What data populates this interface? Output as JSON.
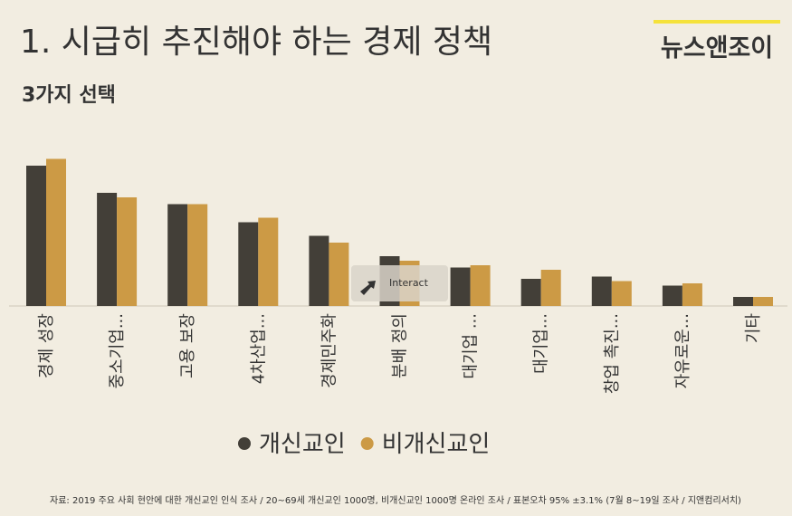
{
  "chart_data": {
    "type": "bar",
    "title": "1. 시급히 추진해야 하는 경제 정책",
    "subtitle": "3가지 선택",
    "logo": "뉴스앤조이",
    "categories": [
      "경제 성장",
      "중소기업...",
      "고용 보장",
      "4차산업...",
      "경제민주화",
      "분배 정의",
      "대기업 ...",
      "대기업...",
      "창업 촉진...",
      "자유로운...",
      "기타"
    ],
    "series": [
      {
        "name": "개신교인",
        "color": "#433f38",
        "values": [
          62,
          50,
          45,
          37,
          31,
          22,
          17,
          12,
          13,
          9,
          4
        ]
      },
      {
        "name": "비개신교인",
        "color": "#cc9a45",
        "values": [
          65,
          48,
          45,
          39,
          28,
          20,
          18,
          16,
          11,
          10,
          4
        ]
      }
    ],
    "interact_button": "Interact",
    "source": "자료: 2019 주요 사회 현안에 대한 개신교인 인식 조사  / 20~69세 개신교인 1000명, 비개신교인 1000명 온라인 조사  / 표본오차 95% ±3.1% (7월 8~19일 조사 / 지앤컴리서치)"
  }
}
